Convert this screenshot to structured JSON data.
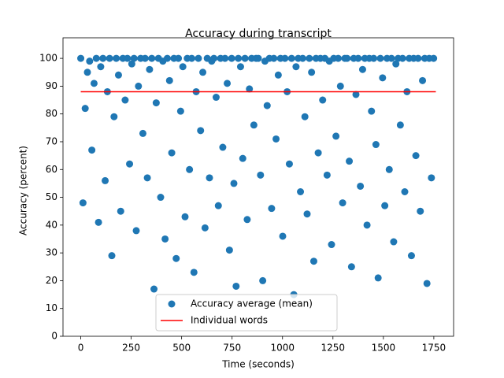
{
  "chart_data": {
    "type": "scatter",
    "title": "Accuracy during transcript",
    "xlabel": "Time (seconds)",
    "ylabel": "Accuracy (percent)",
    "xlim": [
      -88,
      1848
    ],
    "ylim": [
      0,
      107.4
    ],
    "xticks": [
      0,
      250,
      500,
      750,
      1000,
      1250,
      1500,
      1750
    ],
    "yticks": [
      0,
      10,
      20,
      30,
      40,
      50,
      60,
      70,
      80,
      90,
      100
    ],
    "legend": "lower center",
    "series": [
      {
        "name": "Accuracy average (mean)",
        "color": "#1f77b4",
        "style": "points",
        "x": [
          0,
          11,
          22,
          33,
          44,
          55,
          66,
          77,
          88,
          99,
          110,
          121,
          132,
          143,
          154,
          165,
          176,
          187,
          198,
          209,
          220,
          231,
          242,
          253,
          264,
          275,
          286,
          297,
          308,
          319,
          330,
          341,
          352,
          363,
          374,
          385,
          396,
          407,
          418,
          429,
          440,
          451,
          462,
          473,
          484,
          495,
          506,
          517,
          528,
          539,
          550,
          561,
          572,
          583,
          594,
          605,
          616,
          627,
          638,
          649,
          660,
          671,
          682,
          693,
          704,
          715,
          726,
          737,
          748,
          759,
          770,
          781,
          792,
          803,
          814,
          825,
          836,
          847,
          858,
          869,
          880,
          891,
          902,
          913,
          924,
          935,
          946,
          957,
          968,
          979,
          990,
          1001,
          1012,
          1023,
          1034,
          1045,
          1056,
          1067,
          1078,
          1089,
          1100,
          1111,
          1122,
          1133,
          1144,
          1155,
          1166,
          1177,
          1188,
          1199,
          1210,
          1221,
          1232,
          1243,
          1254,
          1265,
          1276,
          1287,
          1298,
          1309,
          1320,
          1331,
          1342,
          1353,
          1364,
          1375,
          1386,
          1397,
          1408,
          1419,
          1430,
          1441,
          1452,
          1463,
          1474,
          1485,
          1496,
          1507,
          1518,
          1529,
          1540,
          1551,
          1562,
          1573,
          1584,
          1595,
          1606,
          1617,
          1628,
          1639,
          1650,
          1661,
          1672,
          1683,
          1694,
          1705,
          1716,
          1727,
          1738,
          1749
        ],
        "values": [
          100,
          48,
          82,
          95,
          99,
          67,
          91,
          100,
          41,
          97,
          100,
          56,
          88,
          100,
          29,
          79,
          100,
          94,
          45,
          100,
          85,
          100,
          62,
          98,
          100,
          38,
          90,
          100,
          73,
          100,
          57,
          96,
          100,
          17,
          84,
          100,
          50,
          99,
          35,
          100,
          92,
          66,
          100,
          28,
          100,
          81,
          97,
          43,
          100,
          60,
          100,
          23,
          88,
          100,
          74,
          95,
          39,
          100,
          57,
          99,
          100,
          86,
          47,
          100,
          68,
          100,
          91,
          31,
          100,
          55,
          18,
          100,
          97,
          64,
          100,
          42,
          89,
          100,
          76,
          100,
          100,
          58,
          20,
          99,
          83,
          100,
          46,
          100,
          71,
          94,
          100,
          36,
          100,
          88,
          62,
          100,
          15,
          97,
          100,
          52,
          100,
          79,
          44,
          100,
          95,
          27,
          100,
          66,
          100,
          85,
          100,
          58,
          99,
          33,
          100,
          72,
          100,
          90,
          48,
          100,
          100,
          63,
          25,
          100,
          87,
          100,
          54,
          96,
          100,
          40,
          100,
          81,
          100,
          69,
          21,
          100,
          93,
          47,
          100,
          60,
          100,
          34,
          98,
          100,
          76,
          100,
          52,
          88,
          100,
          29,
          100,
          65,
          100,
          45,
          92,
          100,
          19,
          100,
          57,
          100
        ]
      },
      {
        "name": "Individual words",
        "color": "#ff0000",
        "style": "line",
        "x": [
          0,
          1760
        ],
        "values": [
          88,
          88
        ]
      }
    ]
  }
}
